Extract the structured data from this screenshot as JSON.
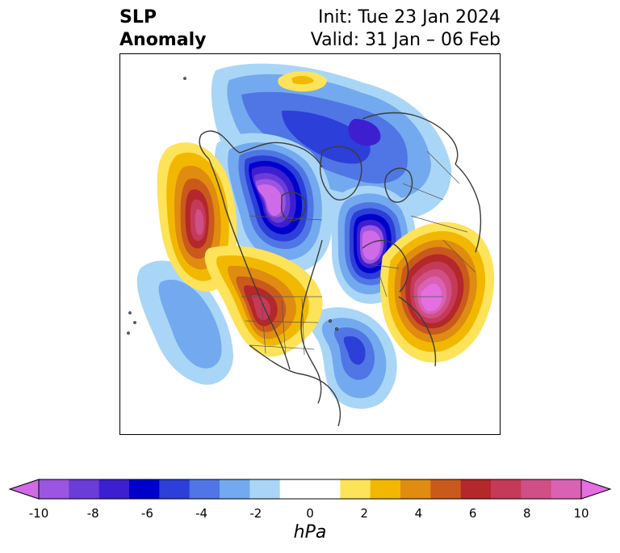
{
  "title": {
    "left_line1": "SLP",
    "left_line2": "Anomaly",
    "right_line1": "Init: Tue 23 Jan 2024",
    "right_line2": "Valid: 31 Jan – 06 Feb"
  },
  "colorbar": {
    "unit": "hPa",
    "ticks": [
      "-10",
      "-8",
      "-6",
      "-4",
      "-2",
      "0",
      "2",
      "4",
      "6",
      "8",
      "10"
    ],
    "colors": [
      "#d06be8",
      "#9b55e0",
      "#6a3cd8",
      "#3d1fd0",
      "#0000cc",
      "#2c3fd8",
      "#4f76e4",
      "#73a9ee",
      "#a9d6f7",
      "#ffffff",
      "#ffffff",
      "#fde35a",
      "#f2b800",
      "#df8c10",
      "#c95a1c",
      "#b4272a",
      "#c43a58",
      "#cf4f86",
      "#da62b4",
      "#e56ee0"
    ],
    "extend": "both"
  },
  "map": {
    "projection": "north-polar stereographic",
    "field": "sea level pressure anomaly",
    "features": [
      {
        "type": "low",
        "region": "Canadian Arctic / Hudson Bay",
        "min_hPa": -10
      },
      {
        "type": "low",
        "region": "Greenland Sea / Norway",
        "min_hPa": -10
      },
      {
        "type": "low",
        "region": "Arctic Ocean / Siberia",
        "min_hPa": -6
      },
      {
        "type": "low",
        "region": "North Atlantic off Newfoundland",
        "min_hPa": -5
      },
      {
        "type": "low",
        "region": "Eastern Pacific",
        "min_hPa": -3
      },
      {
        "type": "high",
        "region": "Ural / Western Siberia",
        "max_hPa": 10
      },
      {
        "type": "high",
        "region": "Northern China / Mongolia",
        "max_hPa": 8
      },
      {
        "type": "high",
        "region": "Aleutians / Bering Sea",
        "max_hPa": 7
      },
      {
        "type": "high",
        "region": "Barents coast",
        "max_hPa": 2
      }
    ]
  }
}
